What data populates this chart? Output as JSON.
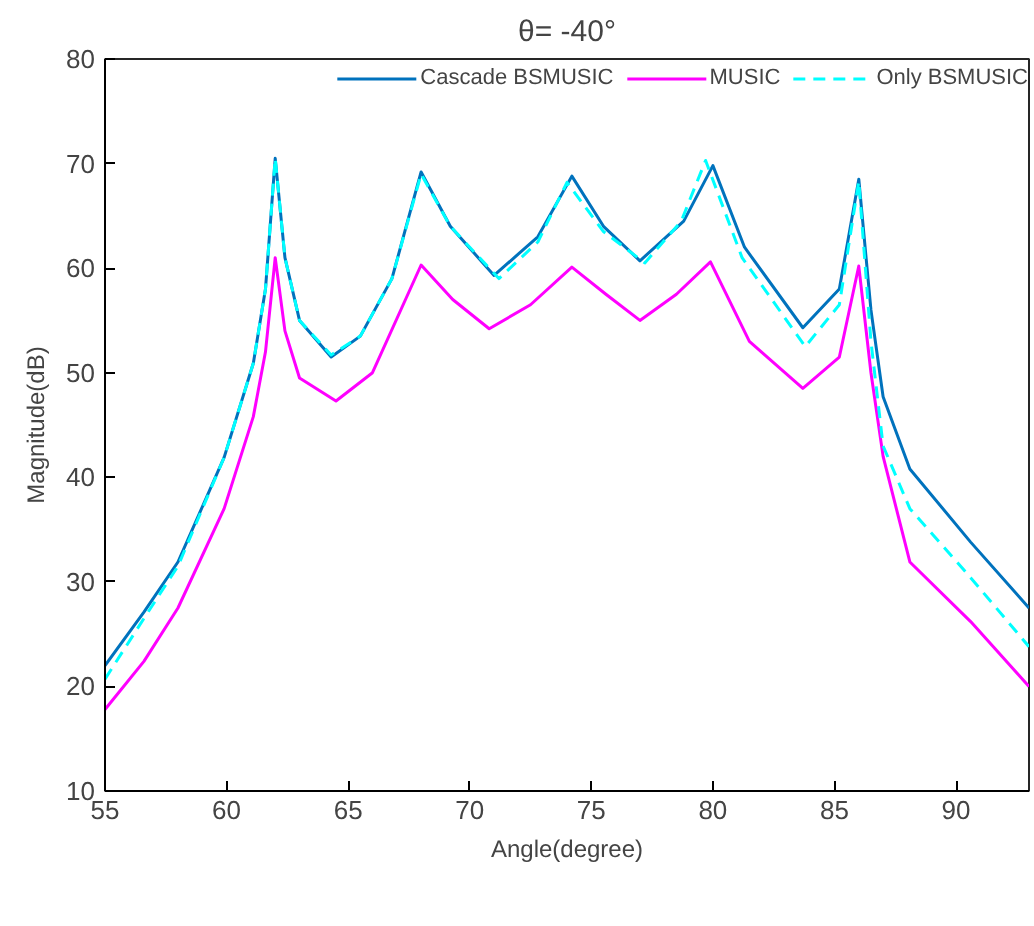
{
  "chart_data": {
    "type": "line",
    "title": "θ= -40°",
    "xlabel": "Angle(degree)",
    "ylabel": "Magnitude(dB)",
    "xlim": [
      55,
      93
    ],
    "ylim": [
      10,
      80
    ],
    "xticks": [
      55,
      60,
      65,
      70,
      75,
      80,
      85,
      90
    ],
    "yticks": [
      10,
      20,
      30,
      40,
      50,
      60,
      70,
      80
    ],
    "grid": false,
    "legend": "top right",
    "marker": "none",
    "series": [
      {
        "name": "Cascade BSMUSIC",
        "color": "#0072bd",
        "line_style": "solid",
        "x": [
          55,
          56.6,
          58,
          59.9,
          61.1,
          61.6,
          62,
          62.4,
          63,
          64.3,
          65.5,
          66.8,
          68,
          69.2,
          71,
          72.8,
          74.2,
          75.5,
          77,
          78.8,
          80,
          81.3,
          83.7,
          85.2,
          86,
          86.5,
          87,
          88.1,
          90.6,
          93
        ],
        "values": [
          22,
          27.1,
          31.9,
          41.9,
          50.9,
          58,
          70.5,
          61,
          55,
          51.5,
          53.5,
          59,
          69.2,
          64,
          59.3,
          63,
          68.8,
          64,
          60.7,
          64.5,
          69.8,
          62,
          54.3,
          58,
          68.5,
          56,
          47.7,
          40.8,
          33.8,
          27.5
        ]
      },
      {
        "name": "MUSIC",
        "color": "#ff00ff",
        "line_style": "solid",
        "x": [
          55,
          56.6,
          58,
          59.9,
          61.1,
          61.6,
          62,
          62.4,
          63,
          64.5,
          66,
          68,
          69.3,
          70.8,
          72.5,
          74.2,
          75.6,
          77,
          78.5,
          79.9,
          81.5,
          83.7,
          85.2,
          86,
          86.5,
          87,
          88.1,
          90.6,
          93
        ],
        "values": [
          17.8,
          22.4,
          27.5,
          37,
          45.8,
          52,
          61,
          54,
          49.5,
          47.3,
          50,
          60.3,
          57,
          54.2,
          56.5,
          60.1,
          57.5,
          55,
          57.5,
          60.6,
          53,
          48.5,
          51.5,
          60.2,
          50,
          42,
          31.9,
          26.2,
          20
        ]
      },
      {
        "name": "Only BSMUSIC",
        "color": "#00ffff",
        "line_style": "dashed",
        "x": [
          55,
          56.6,
          58,
          59.9,
          61.1,
          61.6,
          62,
          62.4,
          63,
          64.3,
          65.5,
          66.8,
          68,
          69.2,
          71.2,
          72.8,
          74,
          75.5,
          77.2,
          78.7,
          79.7,
          81.2,
          83.8,
          85.2,
          86,
          86.5,
          87,
          88.1,
          90.6,
          93
        ],
        "values": [
          20.7,
          26.5,
          31.5,
          41.9,
          50.9,
          58,
          70.5,
          61,
          55,
          51.7,
          53.5,
          59,
          69,
          64,
          59,
          62.5,
          68.2,
          63.5,
          60.5,
          64.5,
          70.3,
          61,
          52.5,
          56.5,
          68.3,
          53,
          43,
          37,
          30.4,
          23.8
        ]
      }
    ]
  }
}
